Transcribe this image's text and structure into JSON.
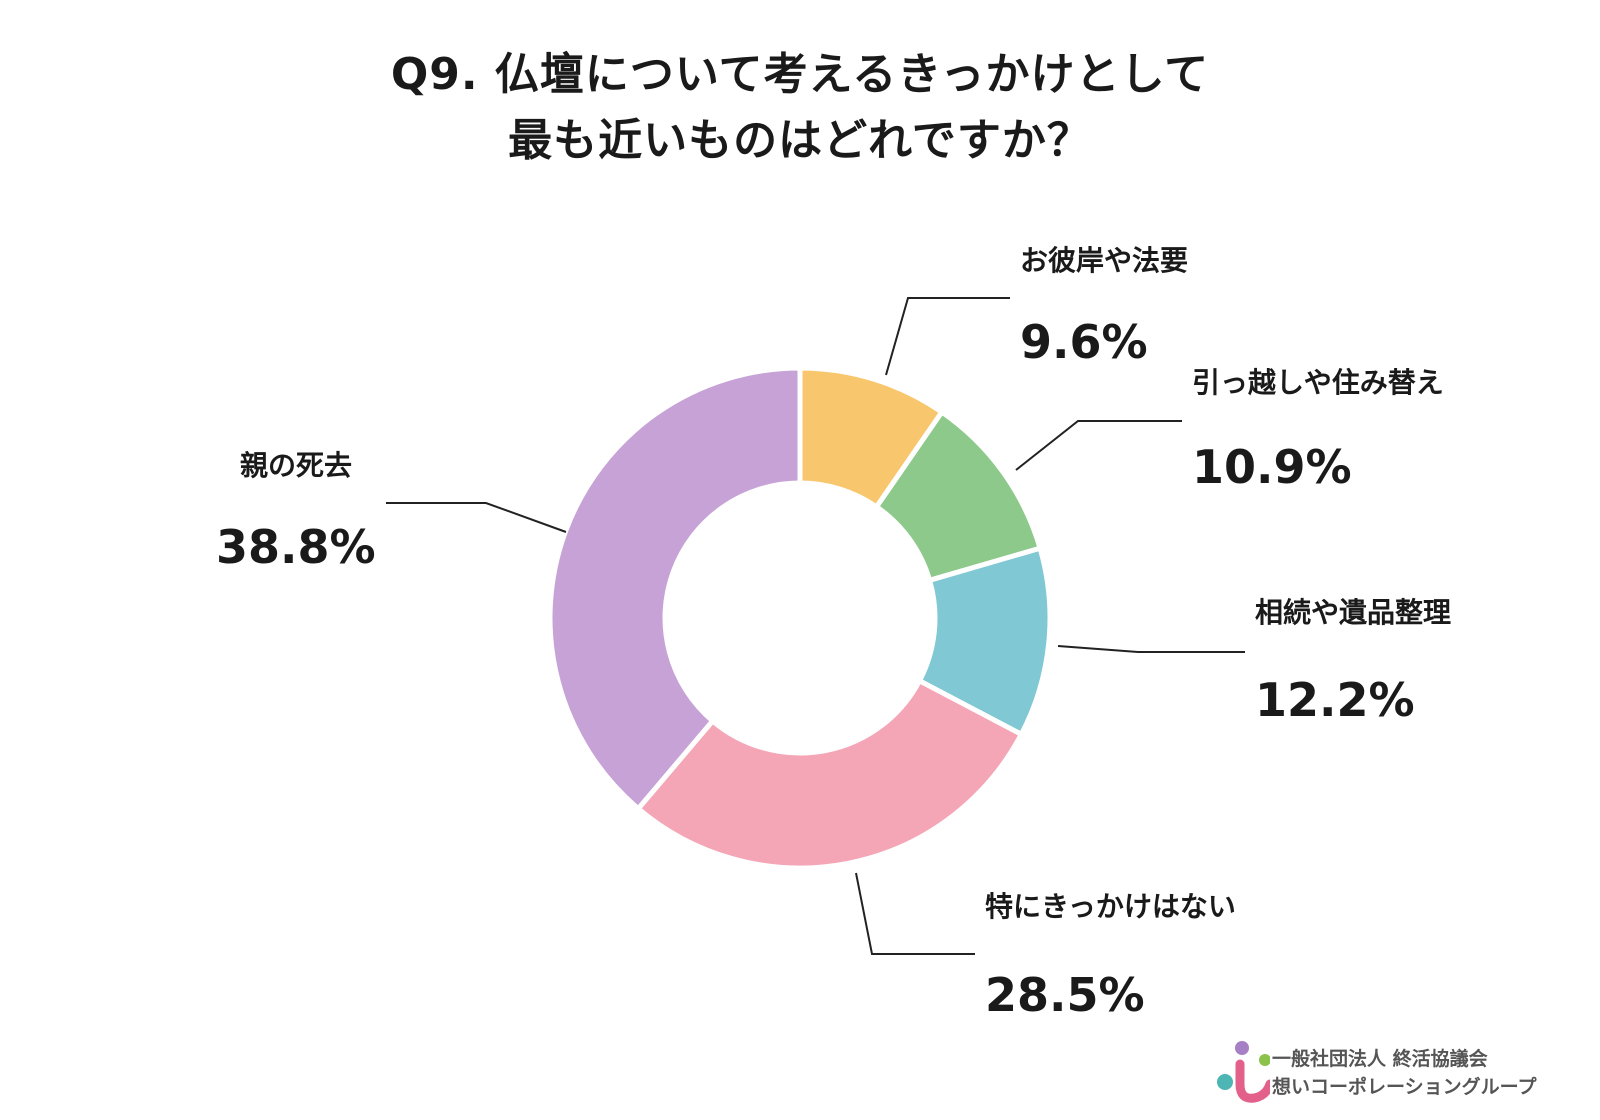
{
  "title_lines": [
    "Q9. 仏壇について考えるきっかけとして",
    "最も近いものはどれですか？"
  ],
  "chart_data": {
    "type": "pie",
    "donut": true,
    "title": "Q9. 仏壇について考えるきっかけとして最も近いものはどれですか？",
    "slices": [
      {
        "label": "お彼岸や法要",
        "value": 9.6,
        "display": "9.6%",
        "color": "#F8C66D"
      },
      {
        "label": "引っ越しや住み替え",
        "value": 10.9,
        "display": "10.9%",
        "color": "#8CC98A"
      },
      {
        "label": "相続や遺品整理",
        "value": 12.2,
        "display": "12.2%",
        "color": "#80C8D3"
      },
      {
        "label": "特にきっかけはない",
        "value": 28.5,
        "display": "28.5%",
        "color": "#F4A6B7"
      },
      {
        "label": "親の死去",
        "value": 38.8,
        "display": "38.8%",
        "color": "#C6A2D6"
      }
    ]
  },
  "logo": {
    "line1": "一般社団法人 終活協議会",
    "line2": "想いコーポレーショングループ"
  }
}
